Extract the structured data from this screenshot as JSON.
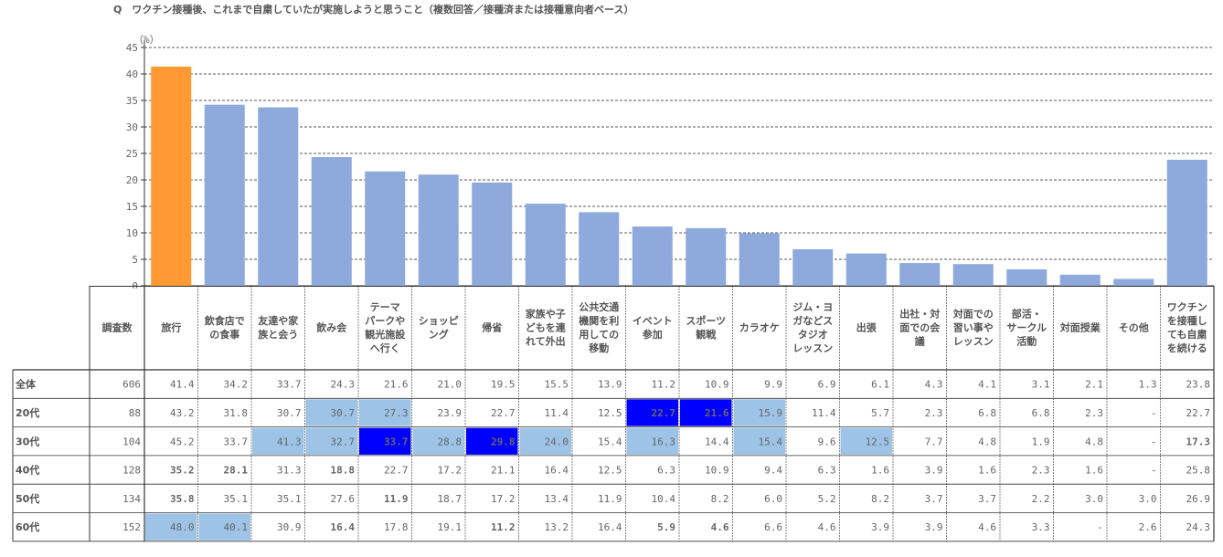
{
  "title": "Q　ワクチン接種後、これまで自粛していたが実施しようと思うこと（複数回答／接種済または接種意向者ベース）",
  "chart_data": {
    "type": "bar",
    "ylabel": "（%）",
    "ylim": [
      0,
      45
    ],
    "yticks": [
      0,
      5,
      10,
      15,
      20,
      25,
      30,
      35,
      40,
      45
    ],
    "grid": true,
    "categories": [
      "旅行",
      "飲食店での食事",
      "友達や家族と会う",
      "飲み会",
      "テーマパークや観光施設へ行く",
      "ショッピング",
      "帰省",
      "家族や子どもを連れて外出",
      "公共交通機関を利用しての移動",
      "イベント参加",
      "スポーツ観戦",
      "カラオケ",
      "ジム・ヨガなどスタジオレッスン",
      "出張",
      "出社・対面での会議",
      "対面での習い事やレッスン",
      "部活・サークル活動",
      "対面授業",
      "その他",
      "ワクチンを接種しても自粛を続ける"
    ],
    "values": [
      41.4,
      34.2,
      33.7,
      24.3,
      21.6,
      21.0,
      19.5,
      15.5,
      13.9,
      11.2,
      10.9,
      9.9,
      6.9,
      6.1,
      4.3,
      4.1,
      3.1,
      2.1,
      1.3,
      23.8
    ],
    "bar_colors": {
      "highlight": "#FF9933",
      "normal": "#8EA9DB"
    }
  },
  "table": {
    "header_lines": [
      [
        "調査数"
      ],
      [
        "旅行"
      ],
      [
        "飲食店で",
        "の食事"
      ],
      [
        "友達や家",
        "族と会う"
      ],
      [
        "飲み会"
      ],
      [
        "テーマ",
        "パークや",
        "観光施設",
        "へ行く"
      ],
      [
        "ショッピ",
        "ング"
      ],
      [
        "帰省"
      ],
      [
        "家族や子",
        "どもを連",
        "れて外出"
      ],
      [
        "公共交通",
        "機関を利",
        "用しての",
        "移動"
      ],
      [
        "イベント",
        "参加"
      ],
      [
        "スポーツ",
        "観戦"
      ],
      [
        "カラオケ"
      ],
      [
        "ジム・ヨ",
        "ガなどス",
        "タジオ",
        "レッスン"
      ],
      [
        "出張"
      ],
      [
        "出社・対",
        "面での会",
        "議"
      ],
      [
        "対面での",
        "習い事や",
        "レッスン"
      ],
      [
        "部活・",
        "サークル",
        "活動"
      ],
      [
        "対面授業"
      ],
      [
        "その他"
      ],
      [
        "ワクチン",
        "を接種し",
        "ても自粛",
        "を続ける"
      ]
    ],
    "rows": [
      {
        "label": "全体",
        "n": "606",
        "values": [
          "41.4",
          "34.2",
          "33.7",
          "24.3",
          "21.6",
          "21.0",
          "19.5",
          "15.5",
          "13.9",
          "11.2",
          "10.9",
          "9.9",
          "6.9",
          "6.1",
          "4.3",
          "4.1",
          "3.1",
          "2.1",
          "1.3",
          "23.8"
        ],
        "styles": [
          "",
          "",
          "",
          "",
          "",
          "",
          "",
          "",
          "",
          "",
          "",
          "",
          "",
          "",
          "",
          "",
          "",
          "",
          "",
          ""
        ]
      },
      {
        "label": "20代",
        "n": "88",
        "values": [
          "43.2",
          "31.8",
          "30.7",
          "30.7",
          "27.3",
          "23.9",
          "22.7",
          "11.4",
          "12.5",
          "22.7",
          "21.6",
          "15.9",
          "11.4",
          "5.7",
          "2.3",
          "6.8",
          "6.8",
          "2.3",
          "-",
          "22.7"
        ],
        "styles": [
          "",
          "",
          "",
          "lb",
          "lb",
          "",
          "",
          "",
          "",
          "db",
          "db",
          "lb",
          "",
          "",
          "",
          "",
          "",
          "",
          "",
          ""
        ]
      },
      {
        "label": "30代",
        "n": "104",
        "values": [
          "45.2",
          "33.7",
          "41.3",
          "32.7",
          "33.7",
          "28.8",
          "29.8",
          "24.0",
          "15.4",
          "16.3",
          "14.4",
          "15.4",
          "9.6",
          "12.5",
          "7.7",
          "4.8",
          "1.9",
          "4.8",
          "-",
          "17.3"
        ],
        "styles": [
          "",
          "",
          "lb",
          "lb",
          "db",
          "lb",
          "db",
          "lb",
          "",
          "lb",
          "",
          "lb",
          "",
          "lb",
          "",
          "",
          "",
          "",
          "",
          "red"
        ]
      },
      {
        "label": "40代",
        "n": "128",
        "values": [
          "35.2",
          "28.1",
          "31.3",
          "18.8",
          "22.7",
          "17.2",
          "21.1",
          "16.4",
          "12.5",
          "6.3",
          "10.9",
          "9.4",
          "6.3",
          "1.6",
          "3.9",
          "1.6",
          "2.3",
          "1.6",
          "-",
          "25.8"
        ],
        "styles": [
          "red",
          "red",
          "",
          "red",
          "",
          "",
          "",
          "",
          "",
          "",
          "",
          "",
          "",
          "",
          "",
          "",
          "",
          "",
          "",
          ""
        ]
      },
      {
        "label": "50代",
        "n": "134",
        "values": [
          "35.8",
          "35.1",
          "35.1",
          "27.6",
          "11.9",
          "18.7",
          "17.2",
          "13.4",
          "11.9",
          "10.4",
          "8.2",
          "6.0",
          "5.2",
          "8.2",
          "3.7",
          "3.7",
          "2.2",
          "3.0",
          "3.0",
          "26.9"
        ],
        "styles": [
          "red",
          "",
          "",
          "",
          "red",
          "",
          "",
          "",
          "",
          "",
          "",
          "",
          "",
          "",
          "",
          "",
          "",
          "",
          "",
          ""
        ]
      },
      {
        "label": "60代",
        "n": "152",
        "values": [
          "48.0",
          "40.1",
          "30.9",
          "16.4",
          "17.8",
          "19.1",
          "11.2",
          "13.2",
          "16.4",
          "5.9",
          "4.6",
          "6.6",
          "4.6",
          "3.9",
          "3.9",
          "4.6",
          "3.3",
          "-",
          "2.6",
          "24.3"
        ],
        "styles": [
          "lb",
          "lb",
          "",
          "red",
          "",
          "",
          "red",
          "",
          "",
          "red",
          "red",
          "",
          "",
          "",
          "",
          "",
          "",
          "",
          "",
          ""
        ]
      }
    ]
  }
}
